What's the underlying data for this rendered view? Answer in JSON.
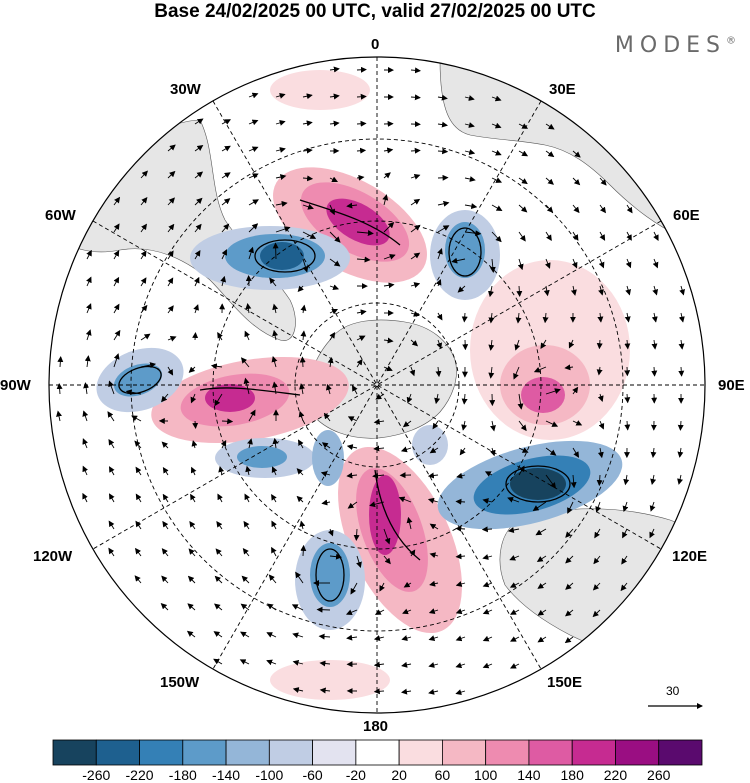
{
  "title": "Base 24/02/2025 00 UTC, valid 27/02/2025 00 UTC",
  "logo": "MODES",
  "logo_mark": "®",
  "longitude_labels": {
    "lon_0": "0",
    "lon_30e": "30E",
    "lon_60e": "60E",
    "lon_90e": "90E",
    "lon_120e": "120E",
    "lon_150e": "150E",
    "lon_180": "180",
    "lon_150w": "150W",
    "lon_120w": "120W",
    "lon_90w": "90W",
    "lon_60w": "60W",
    "lon_30w": "30W"
  },
  "reference_vector": "30",
  "colorbar": {
    "ticks": [
      "-260",
      "-220",
      "-180",
      "-140",
      "-100",
      "-60",
      "-20",
      "20",
      "60",
      "100",
      "140",
      "180",
      "220",
      "260"
    ],
    "colors": [
      "#17435e",
      "#1e608f",
      "#3480b6",
      "#5d9bc9",
      "#94b6d8",
      "#c0cde4",
      "#e3e3f0",
      "#ffffff",
      "#fadde0",
      "#f5b8c4",
      "#ee8bb0",
      "#de5ba3",
      "#c62b91",
      "#9a0e82",
      "#5a0a6e"
    ]
  },
  "map_colors": {
    "land": "#e6e6e6",
    "ocean": "#ffffff",
    "graticule": "#000000"
  },
  "icons": {
    "wind-vector": "arrow",
    "reference-arrow": "arrow"
  }
}
